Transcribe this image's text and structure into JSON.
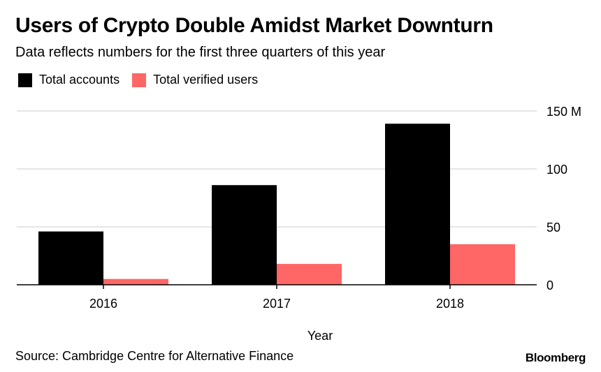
{
  "header": {
    "title": "Users of Crypto Double Amidst Market Downturn",
    "subtitle": "Data reflects numbers for the first three quarters of this year"
  },
  "legend": {
    "items": [
      {
        "label": "Total accounts",
        "color": "#000000"
      },
      {
        "label": "Total verified users",
        "color": "#ff6666"
      }
    ]
  },
  "chart_data": {
    "type": "bar",
    "title": "Users of Crypto Double Amidst Market Downturn",
    "subtitle": "Data reflects numbers for the first three quarters of this year",
    "categories": [
      "2016",
      "2017",
      "2018"
    ],
    "series": [
      {
        "name": "Total accounts",
        "color": "#000000",
        "values": [
          46,
          86,
          139
        ]
      },
      {
        "name": "Total verified users",
        "color": "#ff6666",
        "values": [
          5,
          18,
          35
        ]
      }
    ],
    "xlabel": "Year",
    "ylabel": "",
    "ylim": [
      0,
      150
    ],
    "yticks": [
      0,
      50,
      100,
      150
    ],
    "ytick_labels": [
      "0",
      "50",
      "100",
      "150 M"
    ],
    "grid": true,
    "y_axis_position": "right",
    "legend_position": "top-left"
  },
  "footer": {
    "source": "Source: Cambridge Centre for Alternative Finance",
    "brand": "Bloomberg"
  }
}
